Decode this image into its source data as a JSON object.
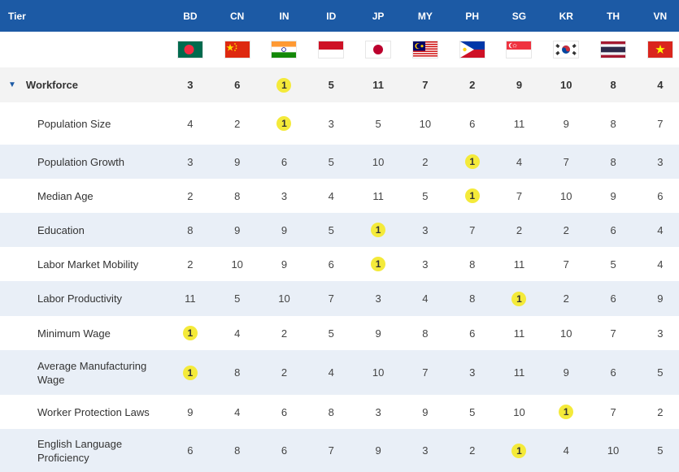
{
  "header": {
    "tier_label": "Tier",
    "countries": [
      "BD",
      "CN",
      "IN",
      "ID",
      "JP",
      "MY",
      "PH",
      "SG",
      "KR",
      "TH",
      "VN"
    ]
  },
  "flags": [
    "bangladesh-flag-icon",
    "china-flag-icon",
    "india-flag-icon",
    "indonesia-flag-icon",
    "japan-flag-icon",
    "malaysia-flag-icon",
    "philippines-flag-icon",
    "singapore-flag-icon",
    "south-korea-flag-icon",
    "thailand-flag-icon",
    "vietnam-flag-icon"
  ],
  "colors": {
    "header_bg": "#1c5aa5",
    "alt_row_bg": "#e9eff7",
    "group_bg": "#f3f3f3",
    "rank1_highlight": "#f4ea3a"
  },
  "group": {
    "label": "Workforce",
    "values": [
      "3",
      "6",
      "1",
      "5",
      "11",
      "7",
      "2",
      "9",
      "10",
      "8",
      "4"
    ]
  },
  "rows": [
    {
      "label": "Population Size",
      "values": [
        "4",
        "2",
        "1",
        "3",
        "5",
        "10",
        "6",
        "11",
        "9",
        "8",
        "7"
      ]
    },
    {
      "label": "Population Growth",
      "values": [
        "3",
        "9",
        "6",
        "5",
        "10",
        "2",
        "1",
        "4",
        "7",
        "8",
        "3"
      ]
    },
    {
      "label": "Median Age",
      "values": [
        "2",
        "8",
        "3",
        "4",
        "11",
        "5",
        "1",
        "7",
        "10",
        "9",
        "6"
      ]
    },
    {
      "label": "Education",
      "values": [
        "8",
        "9",
        "9",
        "5",
        "1",
        "3",
        "7",
        "2",
        "2",
        "6",
        "4"
      ]
    },
    {
      "label": "Labor Market Mobility",
      "values": [
        "2",
        "10",
        "9",
        "6",
        "1",
        "3",
        "8",
        "11",
        "7",
        "5",
        "4"
      ]
    },
    {
      "label": "Labor Productivity",
      "values": [
        "11",
        "5",
        "10",
        "7",
        "3",
        "4",
        "8",
        "1",
        "2",
        "6",
        "9"
      ]
    },
    {
      "label": "Minimum Wage",
      "values": [
        "1",
        "4",
        "2",
        "5",
        "9",
        "8",
        "6",
        "11",
        "10",
        "7",
        "3"
      ]
    },
    {
      "label": "Average Manufacturing Wage",
      "values": [
        "1",
        "8",
        "2",
        "4",
        "10",
        "7",
        "3",
        "11",
        "9",
        "6",
        "5"
      ]
    },
    {
      "label": "Worker Protection Laws",
      "values": [
        "9",
        "4",
        "6",
        "8",
        "3",
        "9",
        "5",
        "10",
        "1",
        "7",
        "2"
      ]
    },
    {
      "label": "English Language Proficiency",
      "values": [
        "6",
        "8",
        "6",
        "7",
        "9",
        "3",
        "2",
        "1",
        "4",
        "10",
        "5"
      ]
    }
  ]
}
